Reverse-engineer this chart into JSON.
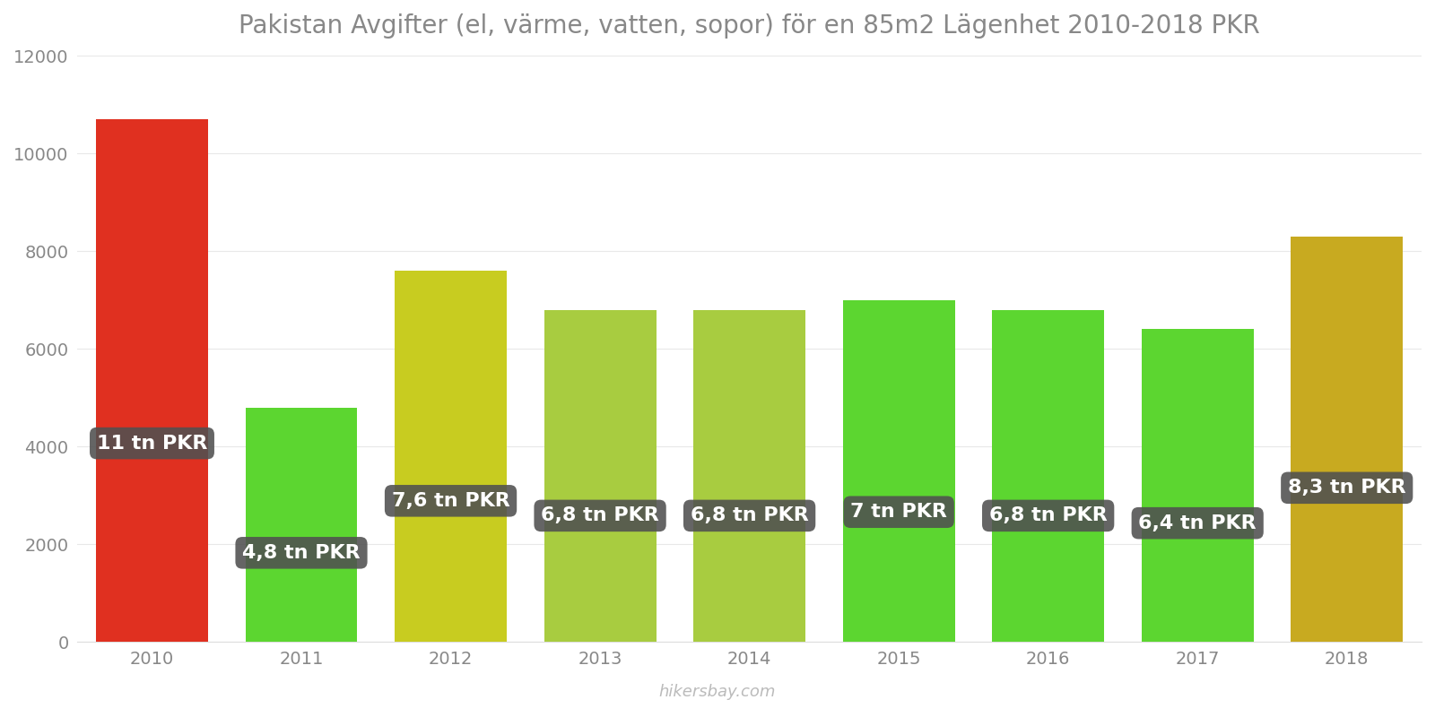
{
  "years": [
    2010,
    2011,
    2012,
    2013,
    2014,
    2015,
    2016,
    2017,
    2018
  ],
  "values": [
    10700,
    4800,
    7600,
    6800,
    6800,
    7000,
    6800,
    6400,
    8300
  ],
  "labels": [
    "11 tn PKR",
    "4,8 tn PKR",
    "7,6 tn PKR",
    "6,8 tn PKR",
    "6,8 tn PKR",
    "7 tn PKR",
    "6,8 tn PKR",
    "6,4 tn PKR",
    "8,3 tn PKR"
  ],
  "bar_colors": [
    "#e03020",
    "#5cd630",
    "#c8cc20",
    "#a8cc40",
    "#a8cc40",
    "#5cd630",
    "#5cd630",
    "#5cd630",
    "#c8aa20"
  ],
  "label_bg_color": "#505050",
  "title": "Pakistan Avgifter (el, värme, vatten, sopor) för en 85m2 Lägenhet 2010-2018 PKR",
  "ylim": [
    0,
    12000
  ],
  "yticks": [
    0,
    2000,
    4000,
    6000,
    8000,
    10000,
    12000
  ],
  "background_color": "#ffffff",
  "watermark": "hikersbay.com",
  "title_fontsize": 20,
  "label_fontsize": 16,
  "tick_fontsize": 14
}
